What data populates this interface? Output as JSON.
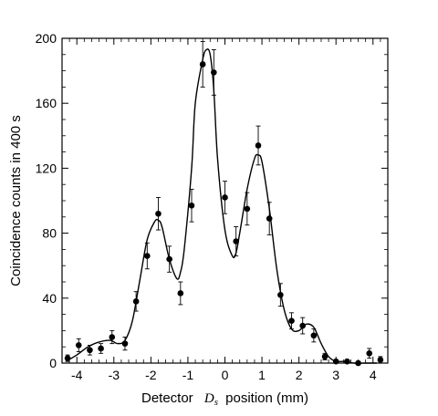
{
  "chart_data": {
    "type": "scatter",
    "title": "",
    "xlabel_prefix": "Detector",
    "xlabel_symbol": "D",
    "xlabel_subscript": "s",
    "xlabel_suffix": "position (mm)",
    "ylabel": "Coincidence counts in 400 s",
    "xlim": [
      -4.4,
      4.4
    ],
    "ylim": [
      0,
      200
    ],
    "x_ticks": [
      -4,
      -3,
      -2,
      -1,
      0,
      1,
      2,
      3,
      4
    ],
    "y_ticks": [
      0,
      40,
      80,
      120,
      160,
      200
    ],
    "grid": false,
    "series": [
      {
        "kind": "points_with_error_bars",
        "color": "#000000",
        "points": [
          {
            "x": -4.25,
            "y": 3,
            "err": 2
          },
          {
            "x": -3.95,
            "y": 11,
            "err": 4
          },
          {
            "x": -3.65,
            "y": 8,
            "err": 3
          },
          {
            "x": -3.35,
            "y": 9,
            "err": 3
          },
          {
            "x": -3.05,
            "y": 16,
            "err": 4
          },
          {
            "x": -2.7,
            "y": 12,
            "err": 4
          },
          {
            "x": -2.4,
            "y": 38,
            "err": 6
          },
          {
            "x": -2.1,
            "y": 66,
            "err": 8
          },
          {
            "x": -1.8,
            "y": 92,
            "err": 10
          },
          {
            "x": -1.5,
            "y": 64,
            "err": 8
          },
          {
            "x": -1.2,
            "y": 43,
            "err": 7
          },
          {
            "x": -0.9,
            "y": 97,
            "err": 10
          },
          {
            "x": -0.6,
            "y": 184,
            "err": 14
          },
          {
            "x": -0.3,
            "y": 179,
            "err": 14
          },
          {
            "x": 0.0,
            "y": 102,
            "err": 10
          },
          {
            "x": 0.3,
            "y": 75,
            "err": 9
          },
          {
            "x": 0.6,
            "y": 95,
            "err": 10
          },
          {
            "x": 0.9,
            "y": 134,
            "err": 12
          },
          {
            "x": 1.2,
            "y": 89,
            "err": 10
          },
          {
            "x": 1.5,
            "y": 42,
            "err": 7
          },
          {
            "x": 1.8,
            "y": 26,
            "err": 5
          },
          {
            "x": 2.1,
            "y": 23,
            "err": 5
          },
          {
            "x": 2.4,
            "y": 17,
            "err": 4
          },
          {
            "x": 2.7,
            "y": 4,
            "err": 2
          },
          {
            "x": 3.0,
            "y": 1,
            "err": 1
          },
          {
            "x": 3.3,
            "y": 1,
            "err": 1
          },
          {
            "x": 3.6,
            "y": 0,
            "err": 1
          },
          {
            "x": 3.9,
            "y": 6,
            "err": 3
          },
          {
            "x": 4.2,
            "y": 2,
            "err": 2
          }
        ]
      },
      {
        "kind": "fit_curve",
        "color": "#000000",
        "x": [
          -4.3,
          -4.0,
          -3.7,
          -3.4,
          -3.1,
          -2.9,
          -2.7,
          -2.5,
          -2.3,
          -2.1,
          -1.9,
          -1.8,
          -1.7,
          -1.5,
          -1.3,
          -1.2,
          -1.1,
          -0.9,
          -0.8,
          -0.6,
          -0.5,
          -0.4,
          -0.3,
          -0.2,
          0.0,
          0.2,
          0.3,
          0.4,
          0.6,
          0.8,
          0.9,
          1.0,
          1.2,
          1.4,
          1.6,
          1.8,
          2.0,
          2.2,
          2.4,
          2.6,
          2.8,
          3.0,
          3.2,
          3.5,
          3.8,
          4.1
        ],
        "y": [
          1,
          5,
          10,
          13,
          14,
          12,
          14,
          26,
          51,
          76,
          87,
          88,
          84,
          64,
          52,
          56,
          70,
          120,
          160,
          187,
          193,
          190,
          168,
          126,
          82,
          66,
          68,
          80,
          107,
          126,
          128,
          124,
          95,
          58,
          33,
          21,
          20,
          24,
          22,
          12,
          4,
          1,
          1,
          0,
          0,
          0
        ]
      }
    ]
  }
}
